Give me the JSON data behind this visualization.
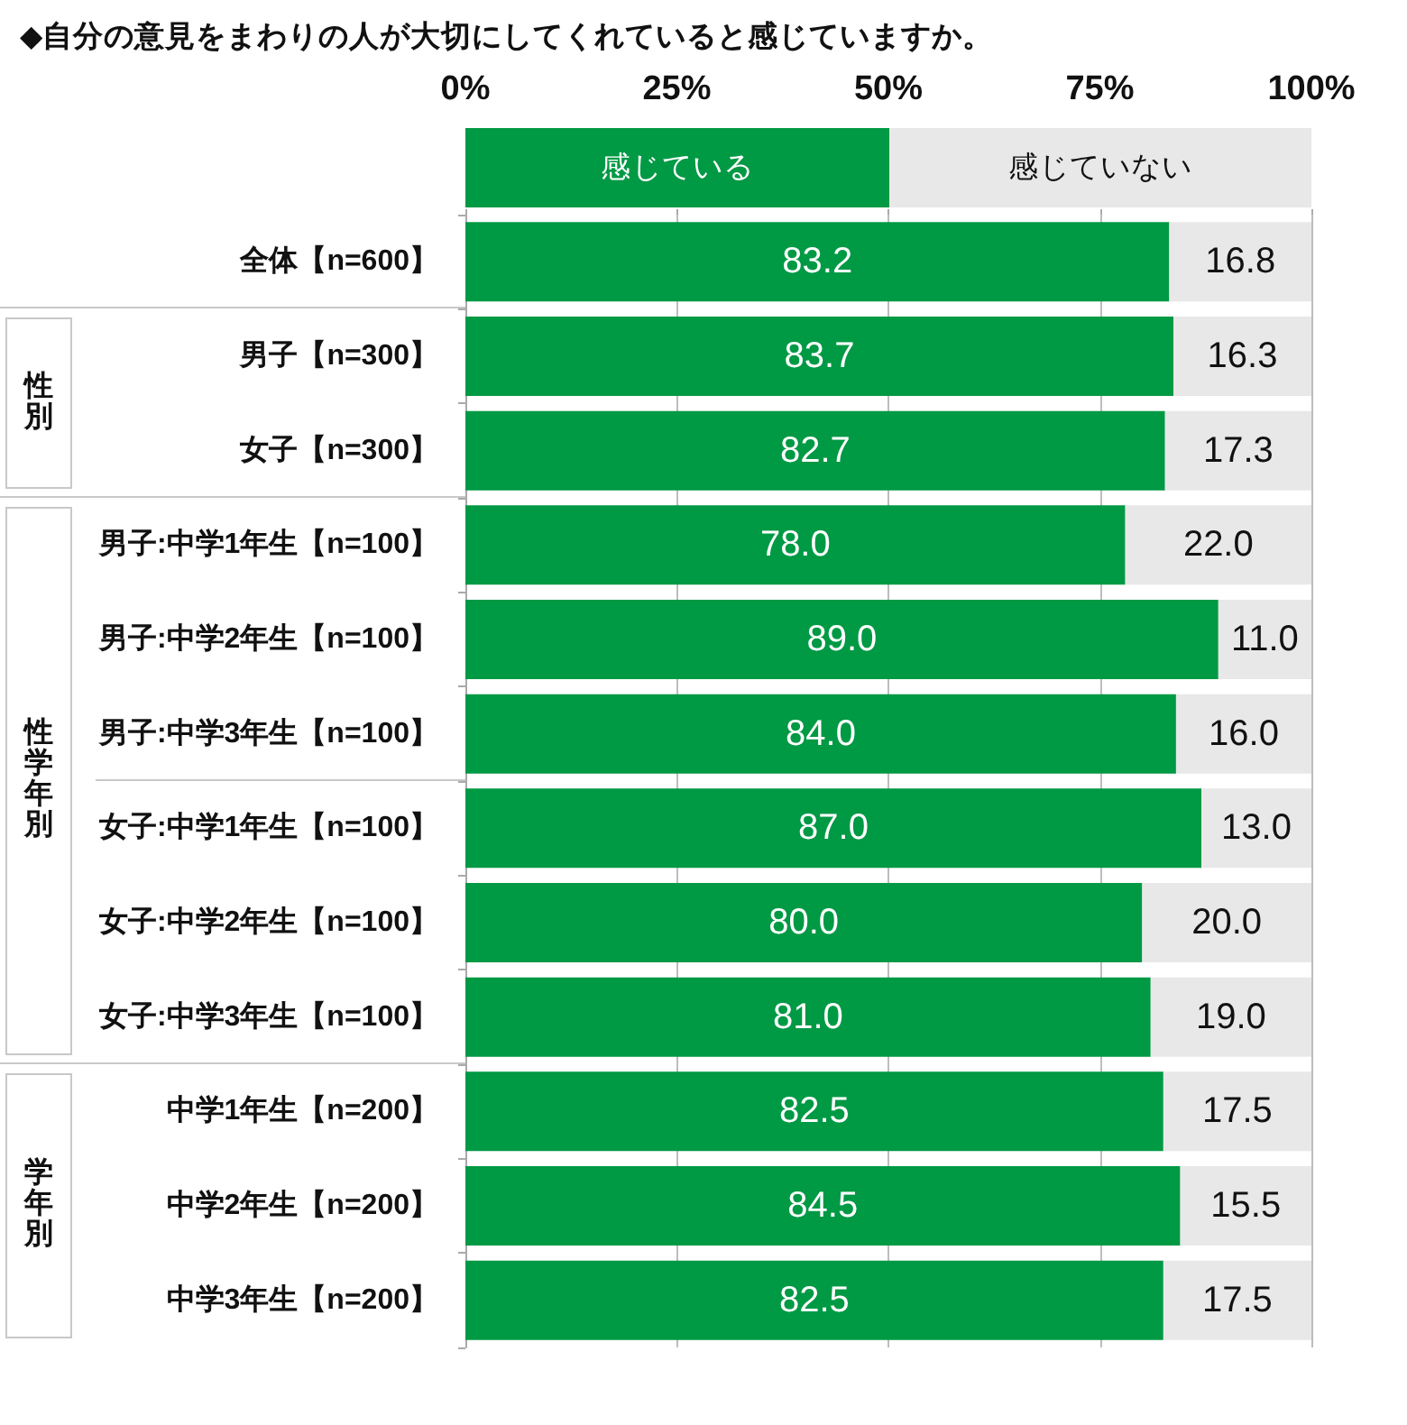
{
  "chart_data": {
    "type": "bar",
    "orientation": "horizontal",
    "stacked": true,
    "title": "◆自分の意見をまわりの人が大切にしてくれていると感じていますか。",
    "categories": [
      "全体【n=600】",
      "男子【n=300】",
      "女子【n=300】",
      "男子:中学1年生【n=100】",
      "男子:中学2年生【n=100】",
      "男子:中学3年生【n=100】",
      "女子:中学1年生【n=100】",
      "女子:中学2年生【n=100】",
      "女子:中学3年生【n=100】",
      "中学1年生【n=200】",
      "中学2年生【n=200】",
      "中学3年生【n=200】"
    ],
    "series": [
      {
        "name": "感じている",
        "color": "#009944",
        "values": [
          83.2,
          83.7,
          82.7,
          78.0,
          89.0,
          84.0,
          87.0,
          80.0,
          81.0,
          82.5,
          84.5,
          82.5
        ],
        "value_labels": [
          "83.2",
          "83.7",
          "82.7",
          "78.0",
          "89.0",
          "84.0",
          "87.0",
          "80.0",
          "81.0",
          "82.5",
          "84.5",
          "82.5"
        ]
      },
      {
        "name": "感じていない",
        "color": "#e8e8e8",
        "values": [
          16.8,
          16.3,
          17.3,
          22.0,
          11.0,
          16.0,
          13.0,
          20.0,
          19.0,
          17.5,
          15.5,
          17.5
        ],
        "value_labels": [
          "16.8",
          "16.3",
          "17.3",
          "22.0",
          "11.0",
          "16.0",
          "13.0",
          "20.0",
          "19.0",
          "17.5",
          "15.5",
          "17.5"
        ]
      }
    ],
    "xlim": [
      0,
      100
    ],
    "xticks": [
      {
        "value": 0,
        "label": "0%"
      },
      {
        "value": 25,
        "label": "25%"
      },
      {
        "value": 50,
        "label": "50%"
      },
      {
        "value": 75,
        "label": "75%"
      },
      {
        "value": 100,
        "label": "100%"
      }
    ],
    "grid": "x",
    "legend": "top",
    "annotations": [
      "性別",
      "性学年別",
      "学年別"
    ]
  }
}
